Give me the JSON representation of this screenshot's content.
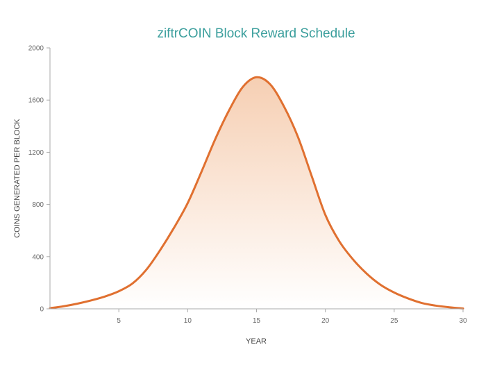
{
  "chart_data": {
    "type": "area",
    "title": "ziftrCOIN Block Reward Schedule",
    "xlabel": "YEAR",
    "ylabel": "COINS GENERATED PER BLOCK",
    "xlim": [
      0,
      30
    ],
    "ylim": [
      0,
      2000
    ],
    "x_ticks": [
      "5",
      "10",
      "15",
      "20",
      "25",
      "30"
    ],
    "y_ticks": [
      "0",
      "400",
      "800",
      "1200",
      "1600",
      "2000"
    ],
    "grid": false,
    "legend": "none",
    "colors": {
      "line": "#e07030",
      "fill_top": "#f6cfb3",
      "fill_bottom": "#ffffff",
      "title": "#3a9e9c"
    },
    "series": [
      {
        "x": [
          0,
          1,
          2,
          3,
          4,
          5,
          6,
          7,
          8,
          9,
          10,
          11,
          12,
          13,
          14,
          15,
          16,
          17,
          18,
          19,
          20,
          21,
          22,
          23,
          24,
          25,
          26,
          27,
          28,
          29,
          30
        ],
        "values": [
          5,
          20,
          40,
          65,
          95,
          135,
          195,
          300,
          450,
          620,
          810,
          1050,
          1300,
          1520,
          1700,
          1775,
          1720,
          1550,
          1320,
          1020,
          720,
          520,
          380,
          270,
          185,
          125,
          80,
          45,
          25,
          12,
          3
        ]
      }
    ]
  }
}
